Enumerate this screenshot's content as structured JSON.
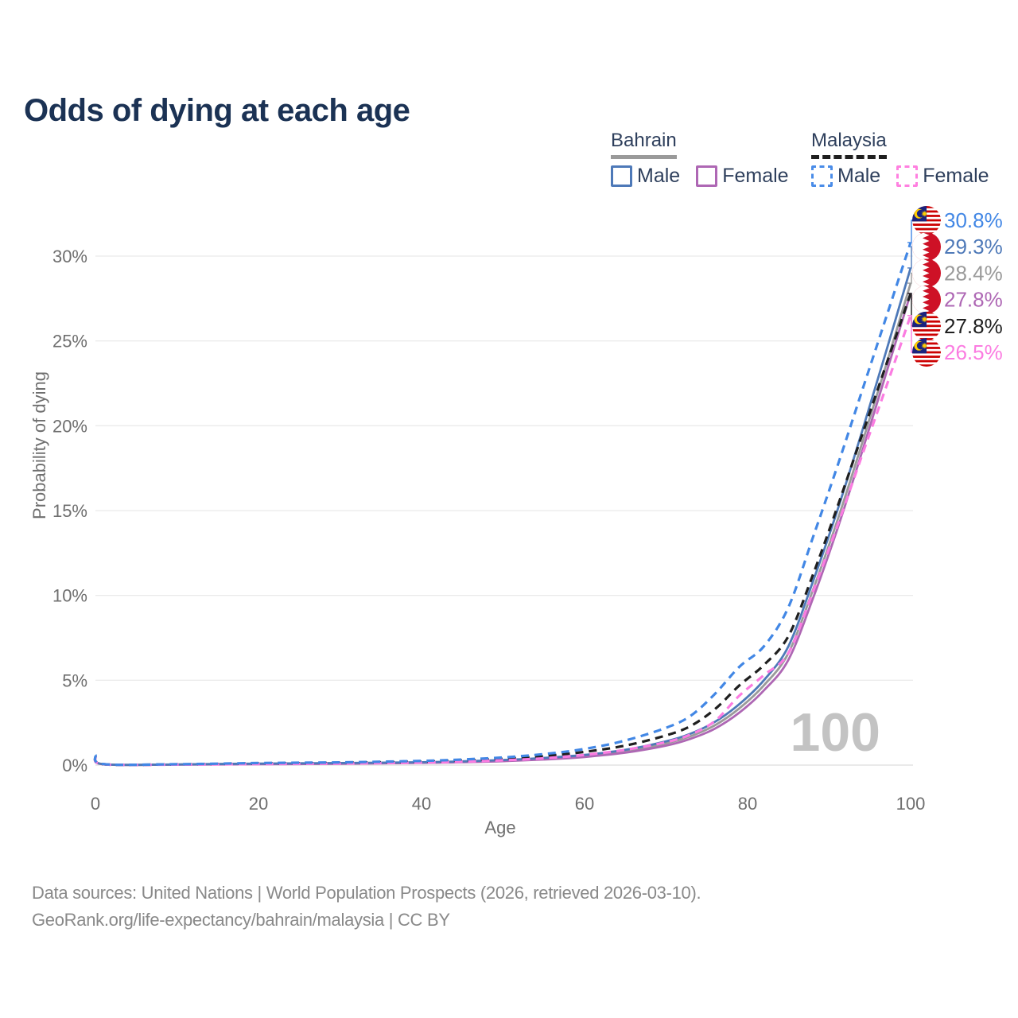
{
  "title": "Odds of dying at each age",
  "legend": {
    "groups": [
      {
        "country": "Bahrain",
        "line_style": "solid",
        "underline_color": "#9a9a9a",
        "items": [
          {
            "label": "Male",
            "color": "#4e79b8",
            "dashed": false
          },
          {
            "label": "Female",
            "color": "#ae67b4",
            "dashed": false
          }
        ]
      },
      {
        "country": "Malaysia",
        "line_style": "dashed",
        "underline_color": "#1f1f1f",
        "items": [
          {
            "label": "Male",
            "color": "#4a8ce8",
            "dashed": true
          },
          {
            "label": "Female",
            "color": "#ff80e0",
            "dashed": true
          }
        ]
      }
    ]
  },
  "chart_data": {
    "type": "line",
    "title": "Odds of dying at each age",
    "xlabel": "Age",
    "ylabel": "Probability of dying",
    "xlim": [
      0,
      100
    ],
    "ylim": [
      0,
      32.5
    ],
    "grid": "horizontal",
    "legend_position": "top-right",
    "watermark": "100",
    "xtick_labels": [
      "0",
      "20",
      "40",
      "60",
      "80",
      "100"
    ],
    "xtick_values": [
      0,
      20,
      40,
      60,
      80,
      100
    ],
    "ytick_labels": [
      "0%",
      "5%",
      "10%",
      "15%",
      "20%",
      "25%",
      "30%"
    ],
    "ytick_values": [
      0,
      5,
      10,
      15,
      20,
      25,
      30
    ],
    "x": [
      0,
      1,
      10,
      20,
      30,
      40,
      45,
      50,
      55,
      60,
      65,
      70,
      73,
      76,
      79,
      82,
      85,
      88,
      91,
      94,
      97,
      100
    ],
    "series": [
      {
        "id": "bahrain-total",
        "name": "Bahrain (total)",
        "country": "Bahrain",
        "flag": "bahrain",
        "color": "#9a9a9a",
        "dashed": false,
        "end_label": "28.4%",
        "values": [
          0.5,
          0.05,
          0.03,
          0.07,
          0.1,
          0.15,
          0.2,
          0.27,
          0.38,
          0.55,
          0.82,
          1.28,
          1.7,
          2.35,
          3.35,
          4.7,
          6.6,
          10.3,
          14.4,
          18.9,
          23.6,
          28.4
        ]
      },
      {
        "id": "bahrain-female",
        "name": "Bahrain Female",
        "country": "Bahrain",
        "flag": "bahrain",
        "color": "#ae67b4",
        "dashed": false,
        "end_label": "27.8%",
        "values": [
          0.45,
          0.04,
          0.03,
          0.05,
          0.08,
          0.13,
          0.17,
          0.23,
          0.33,
          0.48,
          0.73,
          1.15,
          1.55,
          2.15,
          3.1,
          4.4,
          6.2,
          9.8,
          13.9,
          18.4,
          23.1,
          27.8
        ]
      },
      {
        "id": "bahrain-male",
        "name": "Bahrain Male",
        "country": "Bahrain",
        "flag": "bahrain",
        "color": "#4e79b8",
        "dashed": false,
        "end_label": "29.3%",
        "values": [
          0.55,
          0.05,
          0.04,
          0.09,
          0.12,
          0.17,
          0.22,
          0.3,
          0.42,
          0.6,
          0.9,
          1.4,
          1.85,
          2.55,
          3.6,
          5.0,
          7.0,
          10.8,
          15.0,
          19.6,
          24.4,
          29.3
        ]
      },
      {
        "id": "malaysia-total",
        "name": "Malaysia (total)",
        "country": "Malaysia",
        "flag": "malaysia",
        "color": "#1f1f1f",
        "dashed": true,
        "end_label": "27.8%",
        "values": [
          0.55,
          0.05,
          0.04,
          0.09,
          0.13,
          0.2,
          0.27,
          0.37,
          0.53,
          0.78,
          1.15,
          1.75,
          2.3,
          3.3,
          4.7,
          5.9,
          7.6,
          11.2,
          15.2,
          19.4,
          23.6,
          27.8
        ]
      },
      {
        "id": "malaysia-female",
        "name": "Malaysia Female",
        "country": "Malaysia",
        "flag": "malaysia",
        "color": "#fb7ce1",
        "dashed": true,
        "end_label": "26.5%",
        "values": [
          0.5,
          0.05,
          0.03,
          0.06,
          0.09,
          0.15,
          0.2,
          0.28,
          0.4,
          0.6,
          0.9,
          1.35,
          1.8,
          2.6,
          4.1,
          5.3,
          6.6,
          10.2,
          14.1,
          18.2,
          22.3,
          26.5
        ]
      },
      {
        "id": "malaysia-male",
        "name": "Malaysia Male",
        "country": "Malaysia",
        "flag": "malaysia",
        "color": "#4287e5",
        "dashed": true,
        "end_label": "30.8%",
        "values": [
          0.6,
          0.06,
          0.05,
          0.12,
          0.16,
          0.25,
          0.33,
          0.45,
          0.65,
          0.95,
          1.45,
          2.2,
          2.9,
          4.2,
          5.8,
          7.0,
          9.3,
          13.4,
          17.6,
          22.0,
          26.4,
          30.8
        ]
      }
    ]
  },
  "footer": {
    "line1": "Data sources: United Nations | World Population Prospects (2026, retrieved 2026-03-10).",
    "line2": "GeoRank.org/life-expectancy/bahrain/malaysia | CC BY"
  }
}
